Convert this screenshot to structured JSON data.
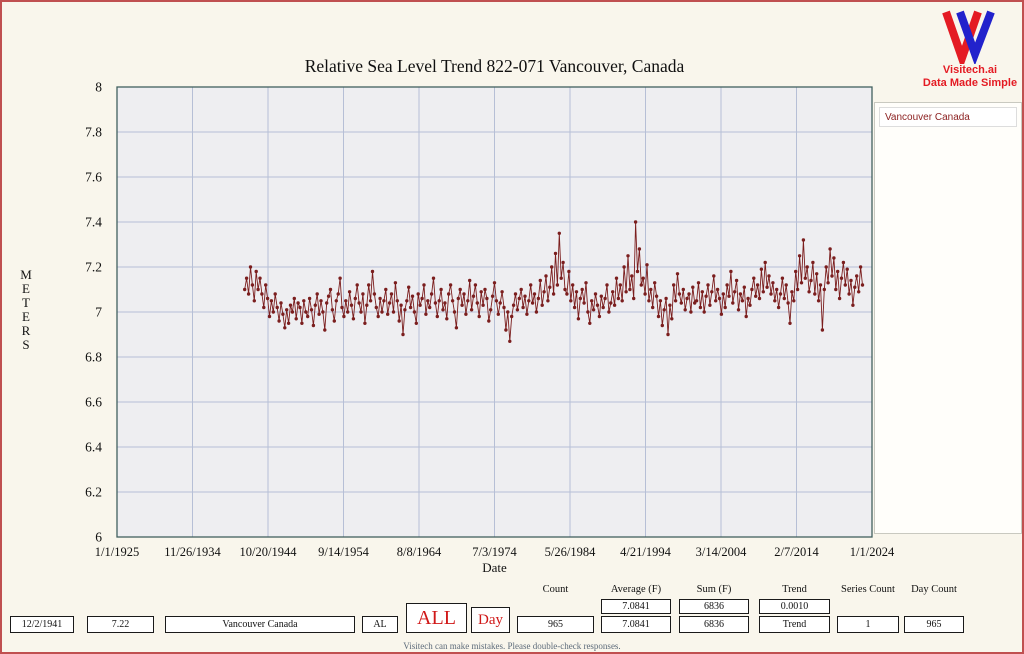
{
  "window": {
    "footer": "Visitech can make mistakes. Please double-check responses."
  },
  "logo": {
    "brand": "Visitech.ai",
    "tagline": "Data Made Simple",
    "red": "#e41b23",
    "blue": "#2222cc"
  },
  "chart_data": {
    "type": "line",
    "title": "Relative Sea Level Trend 822-071 Vancouver, Canada",
    "xlabel": "Date",
    "ylabel": "METERS",
    "ylim": [
      6,
      8
    ],
    "xlim_years": [
      1925,
      2024
    ],
    "grid": true,
    "legend_position": "right",
    "legend": [
      "Vancouver Canada"
    ],
    "y_ticks": [
      8,
      7.8,
      7.6,
      7.4,
      7.2,
      7,
      6.8,
      6.6,
      6.4,
      6.2,
      6
    ],
    "y_tick_labels": [
      "8",
      "7.8",
      "7.6",
      "7.4",
      "7.2",
      "7",
      "6.8",
      "6.6",
      "6.4",
      "6.2",
      "6"
    ],
    "x_tick_labels": [
      "1/1/1925",
      "11/26/1934",
      "10/20/1944",
      "9/14/1954",
      "8/8/1964",
      "7/3/1974",
      "5/26/1984",
      "4/21/1994",
      "3/14/2004",
      "2/7/2014",
      "1/1/2024"
    ],
    "series": [
      {
        "name": "Vancouver Canada",
        "color": "#7b1e1e",
        "x_start": 1941.75,
        "x_step": 0.25,
        "values": [
          7.1,
          7.15,
          7.08,
          7.2,
          7.12,
          7.05,
          7.18,
          7.1,
          7.15,
          7.08,
          7.02,
          7.12,
          7.06,
          6.98,
          7.05,
          7.0,
          7.08,
          7.02,
          6.96,
          7.04,
          6.99,
          6.93,
          7.01,
          6.95,
          7.03,
          7.0,
          7.06,
          6.97,
          7.04,
          7.02,
          6.95,
          7.05,
          7.0,
          6.98,
          7.06,
          7.01,
          6.94,
          7.03,
          7.08,
          6.99,
          7.05,
          7.0,
          6.92,
          7.04,
          7.07,
          7.1,
          7.01,
          6.96,
          7.05,
          7.08,
          7.15,
          7.02,
          6.98,
          7.05,
          7.0,
          7.09,
          7.03,
          6.97,
          7.06,
          7.12,
          7.04,
          7.0,
          7.08,
          6.95,
          7.03,
          7.12,
          7.05,
          7.18,
          7.08,
          7.02,
          6.98,
          7.06,
          7.0,
          7.05,
          7.1,
          6.99,
          7.04,
          7.08,
          7.0,
          7.13,
          7.05,
          6.96,
          7.03,
          6.9,
          7.01,
          7.05,
          7.11,
          7.02,
          7.07,
          7.0,
          6.95,
          7.08,
          7.03,
          7.06,
          7.12,
          6.99,
          7.05,
          7.02,
          7.08,
          7.15,
          7.04,
          6.98,
          7.05,
          7.1,
          7.01,
          7.04,
          6.97,
          7.08,
          7.12,
          7.05,
          7.0,
          6.93,
          7.06,
          7.1,
          7.03,
          7.08,
          6.99,
          7.05,
          7.14,
          7.01,
          7.07,
          7.12,
          7.04,
          6.98,
          7.09,
          7.03,
          7.1,
          7.06,
          6.96,
          7.01,
          7.07,
          7.13,
          7.05,
          6.99,
          7.04,
          7.09,
          7.02,
          6.92,
          7.0,
          6.87,
          6.98,
          7.03,
          7.08,
          7.01,
          7.06,
          7.1,
          7.02,
          7.07,
          6.99,
          7.05,
          7.12,
          7.04,
          7.08,
          7.0,
          7.06,
          7.14,
          7.03,
          7.09,
          7.16,
          7.05,
          7.11,
          7.2,
          7.08,
          7.26,
          7.12,
          7.35,
          7.15,
          7.22,
          7.1,
          7.08,
          7.18,
          7.05,
          7.12,
          7.02,
          7.09,
          6.97,
          7.06,
          7.1,
          7.04,
          7.13,
          7.0,
          6.95,
          7.05,
          7.01,
          7.08,
          7.03,
          6.98,
          7.07,
          7.02,
          7.06,
          7.12,
          7.0,
          7.04,
          7.09,
          7.03,
          7.15,
          7.06,
          7.12,
          7.05,
          7.2,
          7.09,
          7.25,
          7.1,
          7.16,
          7.06,
          7.4,
          7.18,
          7.28,
          7.12,
          7.15,
          7.08,
          7.21,
          7.05,
          7.1,
          7.02,
          7.13,
          7.07,
          6.98,
          7.05,
          6.94,
          7.01,
          7.06,
          6.9,
          7.03,
          6.97,
          7.12,
          7.05,
          7.17,
          7.08,
          7.04,
          7.1,
          7.01,
          7.06,
          7.08,
          7.0,
          7.11,
          7.04,
          7.05,
          7.13,
          7.02,
          7.09,
          7.0,
          7.07,
          7.12,
          7.03,
          7.09,
          7.16,
          7.05,
          7.1,
          7.06,
          6.99,
          7.08,
          7.02,
          7.12,
          7.07,
          7.18,
          7.04,
          7.09,
          7.14,
          7.01,
          7.08,
          7.05,
          7.11,
          6.98,
          7.06,
          7.03,
          7.1,
          7.15,
          7.07,
          7.12,
          7.06,
          7.19,
          7.09,
          7.22,
          7.11,
          7.16,
          7.08,
          7.13,
          7.05,
          7.1,
          7.02,
          7.08,
          7.15,
          7.06,
          7.12,
          7.04,
          6.95,
          7.09,
          7.05,
          7.18,
          7.1,
          7.25,
          7.13,
          7.32,
          7.15,
          7.2,
          7.09,
          7.14,
          7.22,
          7.08,
          7.17,
          7.05,
          7.12,
          6.92,
          7.1,
          7.2,
          7.13,
          7.28,
          7.16,
          7.24,
          7.1,
          7.18,
          7.06,
          7.15,
          7.22,
          7.12,
          7.19,
          7.08,
          7.14,
          7.03,
          7.11,
          7.16,
          7.09,
          7.2,
          7.12
        ]
      }
    ]
  },
  "legend_panel": {
    "items": [
      {
        "label": "Vancouver Canada"
      }
    ]
  },
  "stats": {
    "headers": [
      "Count",
      "Average (F)",
      "Sum (F)",
      "Trend",
      "Series Count",
      "Day Count"
    ],
    "summary": {
      "average": "7.0841",
      "sum": "6836",
      "trend": "0.0010"
    }
  },
  "controls": {
    "date": "12/2/1941",
    "value": "7.22",
    "station": "Vancouver Canada",
    "region": "AL",
    "range_button": "ALL",
    "interval_button": "Day",
    "count": "965",
    "average": "7.0841",
    "sum": "6836",
    "trend_label": "Trend",
    "series_count": "1",
    "day_count": "965"
  }
}
